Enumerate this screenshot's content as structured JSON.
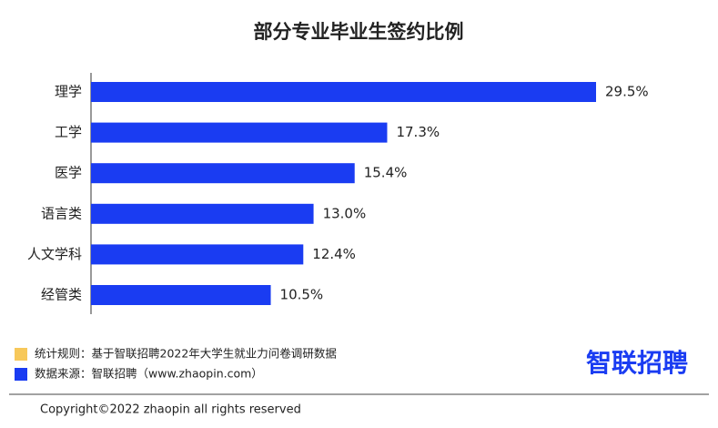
{
  "chart_data": {
    "type": "bar",
    "orientation": "horizontal",
    "title": "部分专业毕业生签约比例",
    "categories": [
      "理学",
      "工学",
      "医学",
      "语言类",
      "人文学科",
      "经管类"
    ],
    "values": [
      29.5,
      17.3,
      15.4,
      13.0,
      12.4,
      10.5
    ],
    "value_labels": [
      "29.5%",
      "17.3%",
      "15.4%",
      "13.0%",
      "12.4%",
      "10.5%"
    ],
    "color": "#1a3cf2"
  },
  "notes": [
    {
      "text": "统计规则：基于智联招聘2022年大学生就业力问卷调研数据",
      "color": "#f7c85a"
    },
    {
      "text": "数据来源：智联招聘（www.zhaopin.com）",
      "color": "#1a3cf2"
    }
  ],
  "logo": "智联招聘",
  "copyright": "Copyright©2022 zhaopin all rights reserved"
}
